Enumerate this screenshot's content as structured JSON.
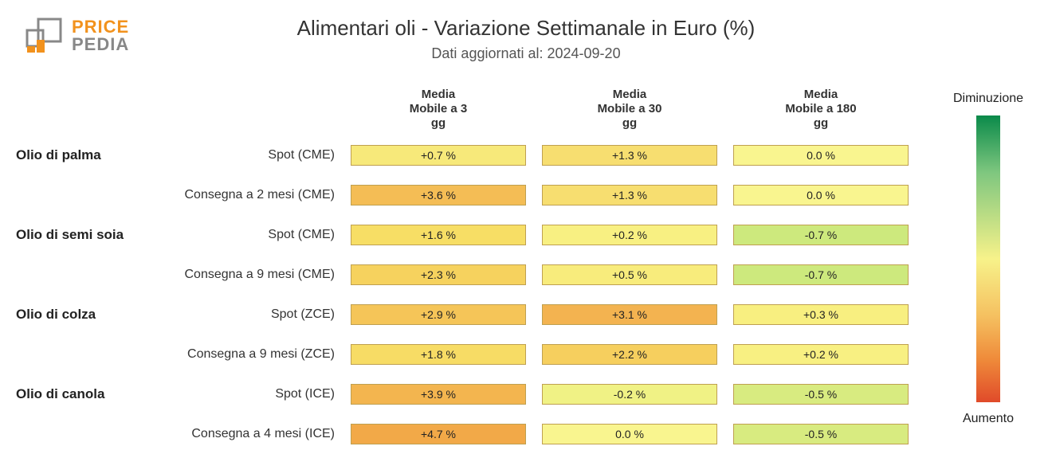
{
  "logo": {
    "top": "PRICE",
    "bottom": "PEDIA",
    "accent": "#f2921d",
    "gray": "#888888"
  },
  "title": "Alimentari oli - Variazione Settimanale in Euro (%)",
  "subtitle": "Dati aggiornati al: 2024-09-20",
  "columns": [
    {
      "line1": "Media",
      "line2": "Mobile a 3",
      "line3": "gg"
    },
    {
      "line1": "Media",
      "line2": "Mobile a 30",
      "line3": "gg"
    },
    {
      "line1": "Media",
      "line2": "Mobile a 180",
      "line3": "gg"
    }
  ],
  "legend": {
    "top": "Diminuzione",
    "bottom": "Aumento"
  },
  "heatmap": {
    "type": "heatmap",
    "cell_border_color": "#bfa050",
    "background_color": "#ffffff",
    "value_fontsize": 14,
    "label_fontsize": 16,
    "header_fontsize": 15,
    "gradient": [
      "#0a8a4a",
      "#7fc77f",
      "#f7f28a",
      "#f5c060",
      "#ef8b3a",
      "#e04a2a"
    ],
    "categories": [
      {
        "name": "Olio di palma",
        "rows": [
          {
            "label": "Spot (CME)",
            "values": [
              "+0.7 %",
              "+1.3 %",
              "0.0 %"
            ],
            "colors": [
              "#f7e97a",
              "#f7de70",
              "#f9f58f"
            ]
          },
          {
            "label": "Consegna a 2 mesi (CME)",
            "values": [
              "+3.6 %",
              "+1.3 %",
              "0.0 %"
            ],
            "colors": [
              "#f4bd55",
              "#f7de70",
              "#f9f58f"
            ]
          }
        ]
      },
      {
        "name": "Olio di semi soia",
        "rows": [
          {
            "label": "Spot (CME)",
            "values": [
              "+1.6 %",
              "+0.2 %",
              "-0.7 %"
            ],
            "colors": [
              "#f7de65",
              "#f8f082",
              "#cde97d"
            ]
          },
          {
            "label": "Consegna a 9 mesi (CME)",
            "values": [
              "+2.3 %",
              "+0.5 %",
              "-0.7 %"
            ],
            "colors": [
              "#f6d25e",
              "#f8ec7c",
              "#cde97d"
            ]
          }
        ]
      },
      {
        "name": "Olio di colza",
        "rows": [
          {
            "label": "Spot (ZCE)",
            "values": [
              "+2.9 %",
              "+3.1 %",
              "+0.3 %"
            ],
            "colors": [
              "#f5c558",
              "#f3b350",
              "#f8ef80"
            ]
          },
          {
            "label": "Consegna a 9 mesi (ZCE)",
            "values": [
              "+1.8 %",
              "+2.2 %",
              "+0.2 %"
            ],
            "colors": [
              "#f7dc65",
              "#f6cf5e",
              "#f8f082"
            ]
          }
        ]
      },
      {
        "name": "Olio di canola",
        "rows": [
          {
            "label": "Spot (ICE)",
            "values": [
              "+3.9 %",
              "-0.2 %",
              "-0.5 %"
            ],
            "colors": [
              "#f3b54f",
              "#f0f285",
              "#d8eb80"
            ]
          },
          {
            "label": "Consegna a 4 mesi (ICE)",
            "values": [
              "+4.7 %",
              "0.0 %",
              "-0.5 %"
            ],
            "colors": [
              "#f2a948",
              "#f9f58f",
              "#d8eb80"
            ]
          }
        ]
      }
    ]
  }
}
